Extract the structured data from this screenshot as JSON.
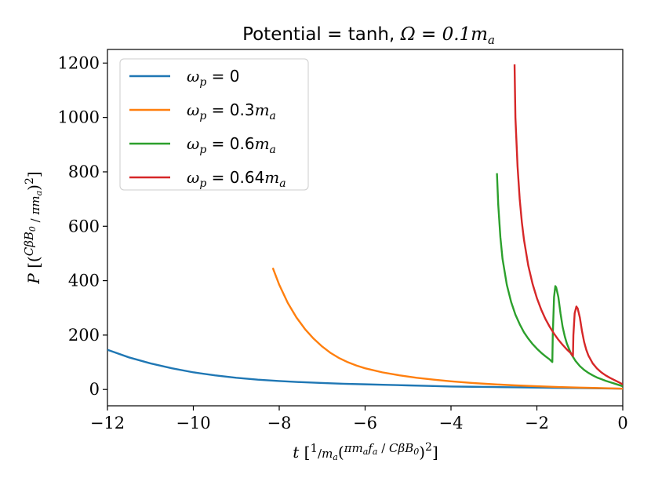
{
  "chart_data": {
    "type": "line",
    "title": "Potential = tanh, Ω = 0.1m_a",
    "title_prefix": "Potential = tanh, ",
    "title_math": "Ω = 0.1m",
    "title_math_sub": "a",
    "xlabel": "t [ (1/m_a) (π m_a f_a / C β B_0)^2 ]",
    "ylabel": "P [ (C β B_0 / π m_a)^2 ]",
    "xlim": [
      -12,
      0
    ],
    "ylim": [
      -60,
      1250
    ],
    "x_ticks": [
      -12,
      -10,
      -8,
      -6,
      -4,
      -2,
      0
    ],
    "x_tick_labels": [
      "−12",
      "−10",
      "−8",
      "−6",
      "−4",
      "−2",
      "0"
    ],
    "y_ticks": [
      0,
      200,
      400,
      600,
      800,
      1000,
      1200
    ],
    "y_tick_labels": [
      "0",
      "200",
      "400",
      "600",
      "800",
      "1000",
      "1200"
    ],
    "legend_position": "top-left",
    "series": [
      {
        "name": "ω_p = 0",
        "legend_value": "0",
        "color": "#1f77b4",
        "x": [
          -12,
          -11.5,
          -11,
          -10.5,
          -10,
          -9.5,
          -9,
          -8.5,
          -8,
          -7.5,
          -7,
          -6.5,
          -6,
          -5.5,
          -5,
          -4.5,
          -4,
          -3.5,
          -3,
          -2.5,
          -2,
          -1.5,
          -1,
          -0.5,
          0
        ],
        "y": [
          146,
          118,
          96,
          78,
          63,
          52,
          43,
          36,
          31,
          27,
          24,
          21,
          19,
          17,
          15,
          13,
          11,
          10,
          9,
          8,
          7,
          6,
          5,
          4,
          3
        ]
      },
      {
        "name": "ω_p = 0.3m_a",
        "legend_value": "0.3",
        "color": "#ff7f0e",
        "x": [
          -8.15,
          -8.0,
          -7.8,
          -7.6,
          -7.4,
          -7.2,
          -7.0,
          -6.8,
          -6.6,
          -6.4,
          -6.2,
          -6.0,
          -5.6,
          -5.2,
          -4.8,
          -4.4,
          -4.0,
          -3.5,
          -3.0,
          -2.5,
          -2.0,
          -1.5,
          -1.0,
          -0.5,
          0
        ],
        "y": [
          447,
          385,
          318,
          265,
          222,
          187,
          158,
          134,
          115,
          100,
          88,
          78,
          63,
          52,
          43,
          36,
          30,
          24,
          19,
          15,
          12,
          9,
          7,
          5,
          3
        ]
      },
      {
        "name": "ω_p = 0.6m_a",
        "legend_value": "0.6",
        "color": "#2ca02c",
        "x": [
          -2.93,
          -2.9,
          -2.85,
          -2.8,
          -2.7,
          -2.6,
          -2.5,
          -2.4,
          -2.3,
          -2.2,
          -2.1,
          -2.0,
          -1.9,
          -1.8,
          -1.7,
          -1.64,
          -1.63,
          -1.6,
          -1.57,
          -1.55,
          -1.5,
          -1.45,
          -1.4,
          -1.35,
          -1.3,
          -1.2,
          -1.1,
          -1.0,
          -0.9,
          -0.8,
          -0.7,
          -0.6,
          -0.5,
          -0.4,
          -0.3,
          -0.2,
          -0.1,
          0
        ],
        "y": [
          795,
          680,
          560,
          480,
          385,
          322,
          275,
          240,
          210,
          187,
          167,
          150,
          135,
          122,
          110,
          101,
          200,
          340,
          380,
          375,
          340,
          280,
          230,
          195,
          168,
          130,
          105,
          86,
          72,
          61,
          52,
          44,
          38,
          32,
          27,
          22,
          17,
          12
        ]
      },
      {
        "name": "ω_p = 0.64m_a",
        "legend_value": "0.64",
        "color": "#d62728",
        "x": [
          -2.52,
          -2.5,
          -2.45,
          -2.4,
          -2.35,
          -2.3,
          -2.2,
          -2.1,
          -2.0,
          -1.9,
          -1.8,
          -1.7,
          -1.6,
          -1.5,
          -1.4,
          -1.3,
          -1.2,
          -1.16,
          -1.15,
          -1.12,
          -1.08,
          -1.05,
          -1.0,
          -0.95,
          -0.9,
          -0.85,
          -0.8,
          -0.7,
          -0.6,
          -0.5,
          -0.4,
          -0.3,
          -0.2,
          -0.1,
          0
        ],
        "y": [
          1195,
          1000,
          820,
          700,
          615,
          550,
          455,
          388,
          336,
          294,
          259,
          230,
          205,
          183,
          164,
          147,
          132,
          123,
          200,
          280,
          305,
          298,
          265,
          215,
          175,
          146,
          125,
          96,
          77,
          63,
          52,
          43,
          35,
          27,
          19
        ]
      }
    ]
  }
}
